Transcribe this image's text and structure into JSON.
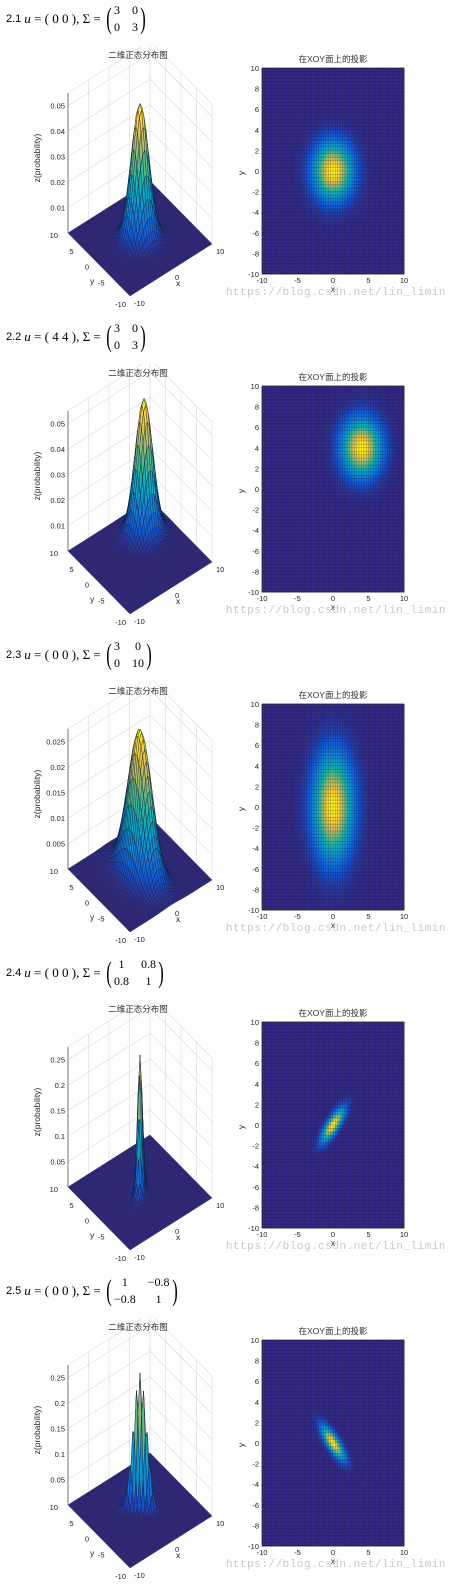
{
  "sections": [
    {
      "number": "2.1",
      "u": "( 0 0 )",
      "sigma": [
        [
          "3",
          "0"
        ],
        [
          "0",
          "3"
        ]
      ],
      "left_title": "二维正态分布图",
      "right_title": "在XOY面上的投影",
      "zlabel": "z(probability)",
      "zticks": [
        "0.01",
        "0.02",
        "0.03",
        "0.04",
        "0.05"
      ]
    },
    {
      "number": "2.2",
      "u": "( 4 4 )",
      "sigma": [
        [
          "3",
          "0"
        ],
        [
          "0",
          "3"
        ]
      ],
      "left_title": "二维正态分布图",
      "right_title": "在XOY面上的投影",
      "zlabel": "z(probability)",
      "zticks": [
        "0.01",
        "0.02",
        "0.03",
        "0.04",
        "0.05"
      ]
    },
    {
      "number": "2.3",
      "u": "( 0 0 )",
      "sigma": [
        [
          "3",
          "0"
        ],
        [
          "0",
          "10"
        ]
      ],
      "left_title": "二维正态分布图",
      "right_title": "在XOY面上的投影",
      "zlabel": "z(probability)",
      "zticks": [
        "0.005",
        "0.01",
        "0.015",
        "0.02",
        "0.025"
      ]
    },
    {
      "number": "2.4",
      "u": "( 0 0 )",
      "sigma": [
        [
          "1",
          "0.8"
        ],
        [
          "0.8",
          "1"
        ]
      ],
      "left_title": "二维正态分布图",
      "right_title": "在XOY面上的投影",
      "zlabel": "z(probability)",
      "zticks": [
        "0.05",
        "0.1",
        "0.15",
        "0.2",
        "0.25"
      ]
    },
    {
      "number": "2.5",
      "u": "( 0 0 )",
      "sigma": [
        [
          "1",
          "−0.8"
        ],
        [
          "−0.8",
          "1"
        ]
      ],
      "left_title": "二维正态分布图",
      "right_title": "在XOY面上的投影",
      "zlabel": "z(probability)",
      "zticks": [
        "0.05",
        "0.1",
        "0.15",
        "0.2",
        "0.25"
      ]
    }
  ],
  "symbols": {
    "u": "u",
    "sigma": "Σ",
    "eq": "=",
    "comma": ","
  },
  "axis3d": {
    "xlabel": "x",
    "ylabel": "y",
    "x_ticks": [
      "-10",
      "0",
      "10"
    ],
    "y_ticks": [
      "-10",
      "-5",
      "0",
      "5",
      "10"
    ]
  },
  "axis2d": {
    "xlabel": "x",
    "ylabel": "y",
    "x_ticks": [
      "-10",
      "-5",
      "0",
      "5",
      "10"
    ],
    "y_ticks": [
      "10",
      "8",
      "6",
      "4",
      "2",
      "0",
      "-2",
      "-4",
      "-6",
      "-8",
      "-10"
    ]
  },
  "watermark": "https://blog.csdn.net/lin_limin",
  "colors": {
    "background": "#ffffff",
    "surface_low": "#2b1a6b",
    "surface_mid": "#208f8c",
    "surface_high": "#f4e45a",
    "watermark": "#c8c8c8"
  },
  "chart_data": [
    {
      "type": "heatmap",
      "title": "在XOY面上的投影",
      "surface_title": "二维正态分布图",
      "xlabel": "x",
      "ylabel": "y",
      "zlabel": "z(probability)",
      "xlim": [
        -10,
        10
      ],
      "ylim": [
        -10,
        10
      ],
      "zlim": [
        0,
        0.055
      ],
      "mean": [
        0,
        0
      ],
      "cov": [
        [
          3,
          0
        ],
        [
          0,
          3
        ]
      ],
      "grid": "on"
    },
    {
      "type": "heatmap",
      "title": "在XOY面上的投影",
      "surface_title": "二维正态分布图",
      "xlabel": "x",
      "ylabel": "y",
      "zlabel": "z(probability)",
      "xlim": [
        -10,
        10
      ],
      "ylim": [
        -10,
        10
      ],
      "zlim": [
        0,
        0.055
      ],
      "mean": [
        4,
        4
      ],
      "cov": [
        [
          3,
          0
        ],
        [
          0,
          3
        ]
      ],
      "grid": "on"
    },
    {
      "type": "heatmap",
      "title": "在XOY面上的投影",
      "surface_title": "二维正态分布图",
      "xlabel": "x",
      "ylabel": "y",
      "zlabel": "z(probability)",
      "xlim": [
        -10,
        10
      ],
      "ylim": [
        -10,
        10
      ],
      "zlim": [
        0,
        0.028
      ],
      "mean": [
        0,
        0
      ],
      "cov": [
        [
          3,
          0
        ],
        [
          0,
          10
        ]
      ],
      "grid": "on"
    },
    {
      "type": "heatmap",
      "title": "在XOY面上的投影",
      "surface_title": "二维正态分布图",
      "xlabel": "x",
      "ylabel": "y",
      "zlabel": "z(probability)",
      "xlim": [
        -10,
        10
      ],
      "ylim": [
        -10,
        10
      ],
      "zlim": [
        0,
        0.27
      ],
      "mean": [
        0,
        0
      ],
      "cov": [
        [
          1,
          0.8
        ],
        [
          0.8,
          1
        ]
      ],
      "grid": "on"
    },
    {
      "type": "heatmap",
      "title": "在XOY面上的投影",
      "surface_title": "二维正态分布图",
      "xlabel": "x",
      "ylabel": "y",
      "zlabel": "z(probability)",
      "xlim": [
        -10,
        10
      ],
      "ylim": [
        -10,
        10
      ],
      "zlim": [
        0,
        0.27
      ],
      "mean": [
        0,
        0
      ],
      "cov": [
        [
          1,
          -0.8
        ],
        [
          -0.8,
          1
        ]
      ],
      "grid": "on"
    }
  ]
}
